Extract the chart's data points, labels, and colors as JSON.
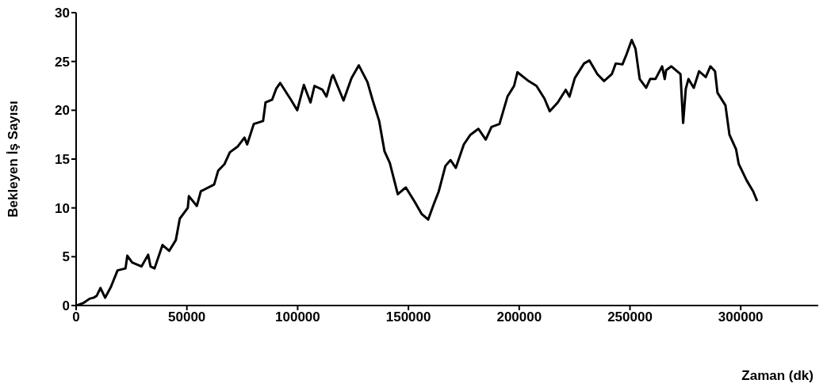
{
  "chart_data": {
    "type": "line",
    "xlabel": "Zaman (dk)",
    "ylabel": "Bekleyen İş Sayısı",
    "x": [
      0,
      3200,
      6100,
      7900,
      9300,
      11000,
      13100,
      15700,
      18700,
      22300,
      23100,
      25300,
      29500,
      32500,
      33600,
      35400,
      39000,
      42000,
      45000,
      46800,
      50400,
      50900,
      54500,
      56300,
      62300,
      64100,
      67000,
      69400,
      73000,
      76000,
      77200,
      80200,
      84400,
      85500,
      88500,
      90300,
      92100,
      96900,
      99800,
      102800,
      105800,
      107600,
      111200,
      113000,
      115400,
      116000,
      120700,
      124300,
      127600,
      131500,
      133900,
      136800,
      139200,
      141600,
      145200,
      148800,
      152900,
      155900,
      158900,
      161300,
      163700,
      166700,
      169000,
      171400,
      175000,
      178000,
      181600,
      184900,
      187500,
      191100,
      194700,
      197700,
      199200,
      204200,
      207800,
      211400,
      213800,
      217400,
      221000,
      222700,
      225100,
      229300,
      231700,
      235300,
      238300,
      241800,
      243600,
      246600,
      248400,
      250800,
      252500,
      254400,
      257300,
      259100,
      261500,
      264500,
      265700,
      266300,
      268700,
      272800,
      274000,
      275200,
      276400,
      278800,
      281200,
      284200,
      286300,
      288400,
      289500,
      293100,
      294900,
      297900,
      299100,
      302700,
      305600,
      307400
    ],
    "series": [
      {
        "color": "#000000",
        "values": [
          0,
          0.25,
          0.7,
          0.8,
          1.0,
          1.8,
          0.8,
          1.9,
          3.6,
          3.8,
          5.1,
          4.4,
          4.0,
          5.2,
          4.0,
          3.8,
          6.2,
          5.6,
          6.7,
          8.9,
          10.0,
          11.2,
          10.2,
          11.7,
          12.4,
          13.8,
          14.5,
          15.7,
          16.3,
          17.2,
          16.5,
          18.6,
          18.9,
          20.8,
          21.1,
          22.2,
          22.8,
          21.1,
          20.0,
          22.6,
          20.8,
          22.5,
          22.1,
          21.4,
          23.4,
          23.6,
          21.0,
          23.3,
          24.6,
          22.9,
          21.0,
          18.9,
          15.8,
          14.6,
          11.4,
          12.1,
          10.6,
          9.4,
          8.8,
          10.3,
          11.7,
          14.3,
          14.9,
          14.1,
          16.5,
          17.5,
          18.1,
          17.0,
          18.3,
          18.6,
          21.4,
          22.5,
          23.9,
          23.0,
          22.5,
          21.2,
          19.9,
          20.8,
          22.1,
          21.4,
          23.3,
          24.8,
          25.1,
          23.7,
          23.0,
          23.7,
          24.8,
          24.7,
          25.7,
          27.2,
          26.3,
          23.2,
          22.3,
          23.2,
          23.2,
          24.5,
          23.2,
          24.1,
          24.5,
          23.7,
          18.7,
          22.2,
          23.2,
          22.3,
          24.0,
          23.4,
          24.5,
          24.0,
          21.8,
          20.5,
          17.5,
          16.0,
          14.5,
          12.8,
          11.7,
          10.7
        ]
      }
    ],
    "xlim": [
      0,
      335000
    ],
    "xticks": [
      0,
      50000,
      100000,
      150000,
      200000,
      250000,
      300000
    ],
    "ylim": [
      0,
      30
    ],
    "yticks": [
      0,
      5,
      10,
      15,
      20,
      25,
      30
    ],
    "grid": false,
    "legend": false,
    "marker": "none",
    "line_style": "solid"
  }
}
